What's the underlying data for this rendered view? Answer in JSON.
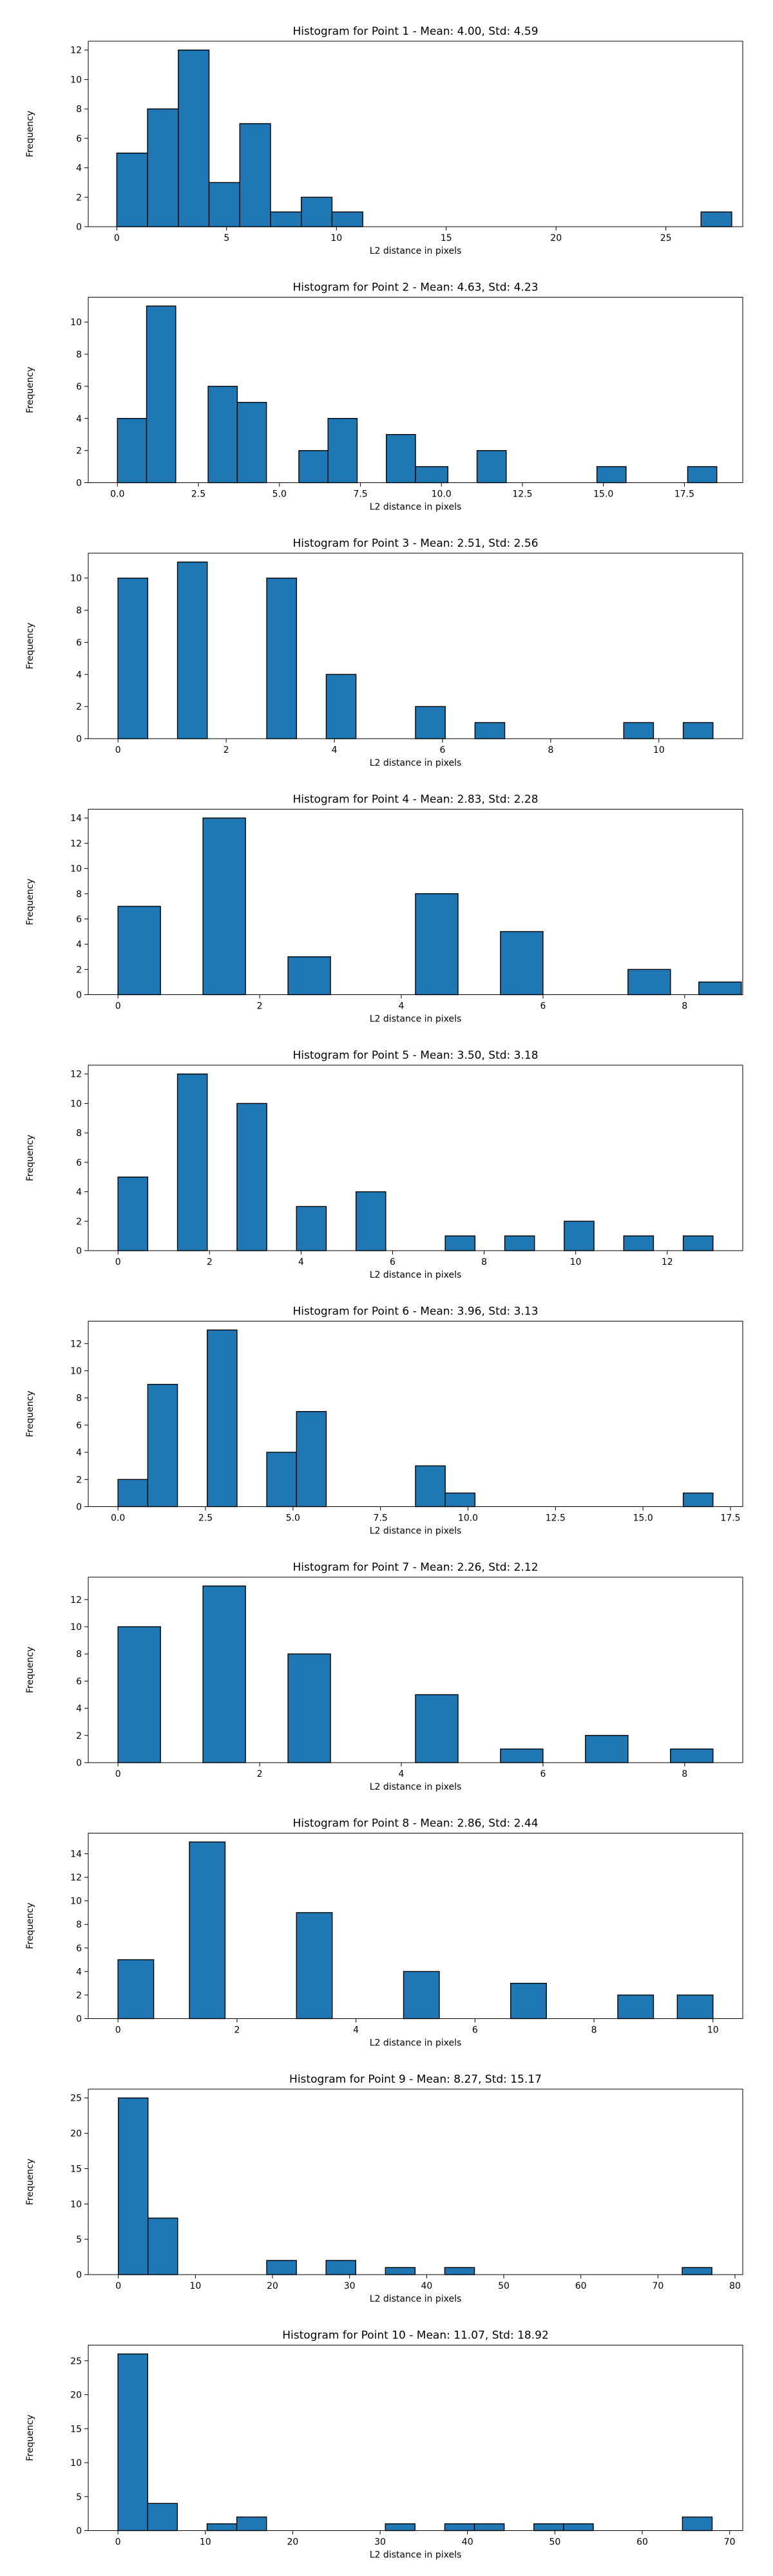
{
  "chart_data": [
    {
      "type": "bar",
      "title": "Histogram for Point 1 - Mean: 4.00, Std: 4.59",
      "xlabel": "L2 distance in pixels",
      "ylabel": "Frequency",
      "xlim": [
        -1.3,
        28.5
      ],
      "ylim": [
        0,
        12.6
      ],
      "xticks": [
        0,
        5,
        10,
        15,
        20,
        25
      ],
      "xtick_labels": [
        "0",
        "5",
        "10",
        "15",
        "20",
        "25"
      ],
      "yticks": [
        0,
        2,
        4,
        6,
        8,
        10,
        12
      ],
      "ytick_labels": [
        "0",
        "2",
        "4",
        "6",
        "8",
        "10",
        "12"
      ],
      "bins": [
        {
          "x0": 0.0,
          "x1": 1.4,
          "count": 5
        },
        {
          "x0": 1.4,
          "x1": 2.8,
          "count": 8
        },
        {
          "x0": 2.8,
          "x1": 4.2,
          "count": 12
        },
        {
          "x0": 4.2,
          "x1": 5.6,
          "count": 3
        },
        {
          "x0": 5.6,
          "x1": 7.0,
          "count": 7
        },
        {
          "x0": 7.0,
          "x1": 8.4,
          "count": 1
        },
        {
          "x0": 8.4,
          "x1": 9.8,
          "count": 2
        },
        {
          "x0": 9.8,
          "x1": 11.2,
          "count": 1
        },
        {
          "x0": 26.6,
          "x1": 28.0,
          "count": 1
        }
      ]
    },
    {
      "type": "bar",
      "title": "Histogram for Point 2 - Mean: 4.63, Std: 4.23",
      "xlabel": "L2 distance in pixels",
      "ylabel": "Frequency",
      "xlim": [
        -0.9,
        19.3
      ],
      "ylim": [
        0,
        11.55
      ],
      "xticks": [
        0,
        2.5,
        5,
        7.5,
        10,
        12.5,
        15,
        17.5
      ],
      "xtick_labels": [
        "0.0",
        "2.5",
        "5.0",
        "7.5",
        "10.0",
        "12.5",
        "15.0",
        "17.5"
      ],
      "yticks": [
        0,
        2,
        4,
        6,
        8,
        10
      ],
      "ytick_labels": [
        "0",
        "2",
        "4",
        "6",
        "8",
        "10"
      ],
      "bins": [
        {
          "x0": 0.0,
          "x1": 0.9,
          "count": 4
        },
        {
          "x0": 0.9,
          "x1": 1.8,
          "count": 11
        },
        {
          "x0": 2.8,
          "x1": 3.7,
          "count": 6
        },
        {
          "x0": 3.7,
          "x1": 4.6,
          "count": 5
        },
        {
          "x0": 5.6,
          "x1": 6.5,
          "count": 2
        },
        {
          "x0": 6.5,
          "x1": 7.4,
          "count": 4
        },
        {
          "x0": 8.3,
          "x1": 9.2,
          "count": 3
        },
        {
          "x0": 9.2,
          "x1": 10.2,
          "count": 1
        },
        {
          "x0": 11.1,
          "x1": 12.0,
          "count": 2
        },
        {
          "x0": 14.8,
          "x1": 15.7,
          "count": 1
        },
        {
          "x0": 17.6,
          "x1": 18.5,
          "count": 1
        }
      ]
    },
    {
      "type": "bar",
      "title": "Histogram for Point 3 - Mean: 2.51, Std: 2.56",
      "xlabel": "L2 distance in pixels",
      "ylabel": "Frequency",
      "xlim": [
        -0.55,
        11.55
      ],
      "ylim": [
        0,
        11.55
      ],
      "xticks": [
        0,
        2,
        4,
        6,
        8,
        10
      ],
      "xtick_labels": [
        "0",
        "2",
        "4",
        "6",
        "8",
        "10"
      ],
      "yticks": [
        0,
        2,
        4,
        6,
        8,
        10
      ],
      "ytick_labels": [
        "0",
        "2",
        "4",
        "6",
        "8",
        "10"
      ],
      "bins": [
        {
          "x0": 0.0,
          "x1": 0.55,
          "count": 10
        },
        {
          "x0": 1.1,
          "x1": 1.65,
          "count": 11
        },
        {
          "x0": 2.75,
          "x1": 3.3,
          "count": 10
        },
        {
          "x0": 3.85,
          "x1": 4.4,
          "count": 4
        },
        {
          "x0": 5.5,
          "x1": 6.05,
          "count": 2
        },
        {
          "x0": 6.6,
          "x1": 7.15,
          "count": 1
        },
        {
          "x0": 9.35,
          "x1": 9.9,
          "count": 1
        },
        {
          "x0": 10.45,
          "x1": 11.0,
          "count": 1
        }
      ]
    },
    {
      "type": "bar",
      "title": "Histogram for Point 4 - Mean: 2.83, Std: 2.28",
      "xlabel": "L2 distance in pixels",
      "ylabel": "Frequency",
      "xlim": [
        -0.42,
        8.82
      ],
      "ylim": [
        0,
        14.7
      ],
      "xticks": [
        0,
        2,
        4,
        6,
        8
      ],
      "xtick_labels": [
        "0",
        "2",
        "4",
        "6",
        "8"
      ],
      "yticks": [
        0,
        2,
        4,
        6,
        8,
        10,
        12,
        14
      ],
      "ytick_labels": [
        "0",
        "2",
        "4",
        "6",
        "8",
        "10",
        "12",
        "14"
      ],
      "bins": [
        {
          "x0": 0.0,
          "x1": 0.6,
          "count": 7
        },
        {
          "x0": 1.2,
          "x1": 1.8,
          "count": 14
        },
        {
          "x0": 2.4,
          "x1": 3.0,
          "count": 3
        },
        {
          "x0": 4.2,
          "x1": 4.8,
          "count": 8
        },
        {
          "x0": 5.4,
          "x1": 6.0,
          "count": 5
        },
        {
          "x0": 7.2,
          "x1": 7.8,
          "count": 2
        },
        {
          "x0": 8.2,
          "x1": 8.8,
          "count": 1
        }
      ]
    },
    {
      "type": "bar",
      "title": "Histogram for Point 5 - Mean: 3.50, Std: 3.18",
      "xlabel": "L2 distance in pixels",
      "ylabel": "Frequency",
      "xlim": [
        -0.65,
        13.65
      ],
      "ylim": [
        0,
        12.6
      ],
      "xticks": [
        0,
        2,
        4,
        6,
        8,
        10,
        12
      ],
      "xtick_labels": [
        "0",
        "2",
        "4",
        "6",
        "8",
        "10",
        "12"
      ],
      "yticks": [
        0,
        2,
        4,
        6,
        8,
        10,
        12
      ],
      "ytick_labels": [
        "0",
        "2",
        "4",
        "6",
        "8",
        "10",
        "12"
      ],
      "bins": [
        {
          "x0": 0.0,
          "x1": 0.65,
          "count": 5
        },
        {
          "x0": 1.3,
          "x1": 1.95,
          "count": 12
        },
        {
          "x0": 2.6,
          "x1": 3.25,
          "count": 10
        },
        {
          "x0": 3.9,
          "x1": 4.55,
          "count": 3
        },
        {
          "x0": 5.2,
          "x1": 5.85,
          "count": 4
        },
        {
          "x0": 7.15,
          "x1": 7.8,
          "count": 1
        },
        {
          "x0": 8.45,
          "x1": 9.1,
          "count": 1
        },
        {
          "x0": 9.75,
          "x1": 10.4,
          "count": 2
        },
        {
          "x0": 11.05,
          "x1": 11.7,
          "count": 1
        },
        {
          "x0": 12.35,
          "x1": 13.0,
          "count": 1
        }
      ]
    },
    {
      "type": "bar",
      "title": "Histogram for Point 6 - Mean: 3.96, Std: 3.13",
      "xlabel": "L2 distance in pixels",
      "ylabel": "Frequency",
      "xlim": [
        -0.85,
        17.85
      ],
      "ylim": [
        0,
        13.65
      ],
      "xticks": [
        0,
        2.5,
        5,
        7.5,
        10,
        12.5,
        15,
        17.5
      ],
      "xtick_labels": [
        "0.0",
        "2.5",
        "5.0",
        "7.5",
        "10.0",
        "12.5",
        "15.0",
        "17.5"
      ],
      "yticks": [
        0,
        2,
        4,
        6,
        8,
        10,
        12
      ],
      "ytick_labels": [
        "0",
        "2",
        "4",
        "6",
        "8",
        "10",
        "12"
      ],
      "bins": [
        {
          "x0": 0.0,
          "x1": 0.85,
          "count": 2
        },
        {
          "x0": 0.85,
          "x1": 1.7,
          "count": 9
        },
        {
          "x0": 2.55,
          "x1": 3.4,
          "count": 13
        },
        {
          "x0": 4.25,
          "x1": 5.1,
          "count": 4
        },
        {
          "x0": 5.1,
          "x1": 5.95,
          "count": 7
        },
        {
          "x0": 8.5,
          "x1": 9.35,
          "count": 3
        },
        {
          "x0": 9.35,
          "x1": 10.2,
          "count": 1
        },
        {
          "x0": 16.15,
          "x1": 17.0,
          "count": 1
        }
      ]
    },
    {
      "type": "bar",
      "title": "Histogram for Point 7 - Mean: 2.26, Std: 2.12",
      "xlabel": "L2 distance in pixels",
      "ylabel": "Frequency",
      "xlim": [
        -0.42,
        8.82
      ],
      "ylim": [
        0,
        13.65
      ],
      "xticks": [
        0,
        2,
        4,
        6,
        8
      ],
      "xtick_labels": [
        "0",
        "2",
        "4",
        "6",
        "8"
      ],
      "yticks": [
        0,
        2,
        4,
        6,
        8,
        10,
        12
      ],
      "ytick_labels": [
        "0",
        "2",
        "4",
        "6",
        "8",
        "10",
        "12"
      ],
      "bins": [
        {
          "x0": 0.0,
          "x1": 0.6,
          "count": 10
        },
        {
          "x0": 1.2,
          "x1": 1.8,
          "count": 13
        },
        {
          "x0": 2.4,
          "x1": 3.0,
          "count": 8
        },
        {
          "x0": 4.2,
          "x1": 4.8,
          "count": 5
        },
        {
          "x0": 5.4,
          "x1": 6.0,
          "count": 1
        },
        {
          "x0": 6.6,
          "x1": 7.2,
          "count": 2
        },
        {
          "x0": 7.8,
          "x1": 8.4,
          "count": 1
        }
      ]
    },
    {
      "type": "bar",
      "title": "Histogram for Point 8 - Mean: 2.86, Std: 2.44",
      "xlabel": "L2 distance in pixels",
      "ylabel": "Frequency",
      "xlim": [
        -0.5,
        10.5
      ],
      "ylim": [
        0,
        15.75
      ],
      "xticks": [
        0,
        2,
        4,
        6,
        8,
        10
      ],
      "xtick_labels": [
        "0",
        "2",
        "4",
        "6",
        "8",
        "10"
      ],
      "yticks": [
        0,
        2,
        4,
        6,
        8,
        10,
        12,
        14
      ],
      "ytick_labels": [
        "0",
        "2",
        "4",
        "6",
        "8",
        "10",
        "12",
        "14"
      ],
      "bins": [
        {
          "x0": 0.0,
          "x1": 0.6,
          "count": 5
        },
        {
          "x0": 1.2,
          "x1": 1.8,
          "count": 15
        },
        {
          "x0": 3.0,
          "x1": 3.6,
          "count": 9
        },
        {
          "x0": 4.8,
          "x1": 5.4,
          "count": 4
        },
        {
          "x0": 6.6,
          "x1": 7.2,
          "count": 3
        },
        {
          "x0": 8.4,
          "x1": 9.0,
          "count": 2
        },
        {
          "x0": 9.4,
          "x1": 10.0,
          "count": 2
        }
      ]
    },
    {
      "type": "bar",
      "title": "Histogram for Point 9 - Mean: 8.27, Std: 15.17",
      "xlabel": "L2 distance in pixels",
      "ylabel": "Frequency",
      "xlim": [
        -3.9,
        81.0
      ],
      "ylim": [
        0,
        26.25
      ],
      "xticks": [
        0,
        10,
        20,
        30,
        40,
        50,
        60,
        70,
        80
      ],
      "xtick_labels": [
        "0",
        "10",
        "20",
        "30",
        "40",
        "50",
        "60",
        "70",
        "80"
      ],
      "yticks": [
        0,
        5,
        10,
        15,
        20,
        25
      ],
      "ytick_labels": [
        "0",
        "5",
        "10",
        "15",
        "20",
        "25"
      ],
      "bins": [
        {
          "x0": 0.0,
          "x1": 3.85,
          "count": 25
        },
        {
          "x0": 3.85,
          "x1": 7.7,
          "count": 8
        },
        {
          "x0": 19.25,
          "x1": 23.1,
          "count": 2
        },
        {
          "x0": 26.95,
          "x1": 30.8,
          "count": 2
        },
        {
          "x0": 34.65,
          "x1": 38.5,
          "count": 1
        },
        {
          "x0": 42.35,
          "x1": 46.2,
          "count": 1
        },
        {
          "x0": 73.15,
          "x1": 77.0,
          "count": 1
        }
      ]
    },
    {
      "type": "bar",
      "title": "Histogram for Point 10 - Mean: 11.07, Std: 18.92",
      "xlabel": "L2 distance in pixels",
      "ylabel": "Frequency",
      "xlim": [
        -3.4,
        71.5
      ],
      "ylim": [
        0,
        27.3
      ],
      "xticks": [
        0,
        10,
        20,
        30,
        40,
        50,
        60,
        70
      ],
      "xtick_labels": [
        "0",
        "10",
        "20",
        "30",
        "40",
        "50",
        "60",
        "70"
      ],
      "yticks": [
        0,
        5,
        10,
        15,
        20,
        25
      ],
      "ytick_labels": [
        "0",
        "5",
        "10",
        "15",
        "20",
        "25"
      ],
      "bins": [
        {
          "x0": 0.0,
          "x1": 3.4,
          "count": 26
        },
        {
          "x0": 3.4,
          "x1": 6.8,
          "count": 4
        },
        {
          "x0": 10.2,
          "x1": 13.6,
          "count": 1
        },
        {
          "x0": 13.6,
          "x1": 17.0,
          "count": 2
        },
        {
          "x0": 30.6,
          "x1": 34.0,
          "count": 1
        },
        {
          "x0": 37.4,
          "x1": 40.8,
          "count": 1
        },
        {
          "x0": 40.8,
          "x1": 44.2,
          "count": 1
        },
        {
          "x0": 47.6,
          "x1": 51.0,
          "count": 1
        },
        {
          "x0": 51.0,
          "x1": 54.4,
          "count": 1
        },
        {
          "x0": 64.6,
          "x1": 68.0,
          "count": 2
        }
      ]
    }
  ],
  "colors": {
    "bar_fill": "#1f77b4",
    "bar_edge": "#000000",
    "axis": "#000000",
    "background": "#ffffff"
  }
}
